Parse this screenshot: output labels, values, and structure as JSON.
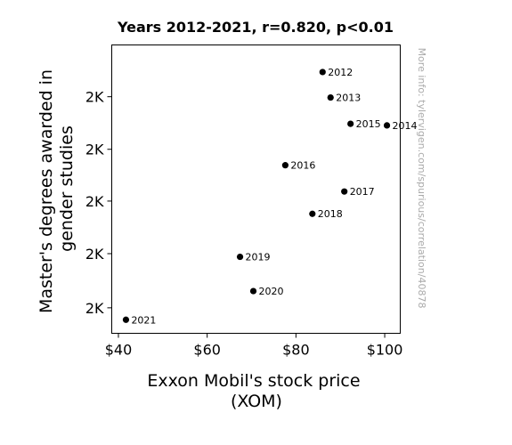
{
  "chart_data": {
    "type": "scatter",
    "title": "Years 2012-2021, r=0.820, p<0.01",
    "xlabel_lines": [
      "Exxon Mobil's stock price",
      "(XOM)"
    ],
    "ylabel_lines": [
      "Master's degrees awarded in",
      "gender studies"
    ],
    "watermark": "More info: tylervigen.com/spurious/correlation/40878",
    "xlim": [
      38.5,
      103.5
    ],
    "ylim": [
      1518,
      1880
    ],
    "x_ticks": [
      {
        "value": 40,
        "label": "$40"
      },
      {
        "value": 60,
        "label": "$60"
      },
      {
        "value": 80,
        "label": "$80"
      },
      {
        "value": 100,
        "label": "$100"
      }
    ],
    "y_ticks": [
      {
        "value": 1550,
        "label": "2K"
      },
      {
        "value": 1618,
        "label": "2K"
      },
      {
        "value": 1684,
        "label": "2K"
      },
      {
        "value": 1749,
        "label": "2K"
      },
      {
        "value": 1815,
        "label": "2K"
      }
    ],
    "points": [
      {
        "label": "2012",
        "x": 86.0,
        "y": 1846
      },
      {
        "label": "2013",
        "x": 87.8,
        "y": 1814
      },
      {
        "label": "2014",
        "x": 100.5,
        "y": 1779
      },
      {
        "label": "2015",
        "x": 92.3,
        "y": 1781
      },
      {
        "label": "2016",
        "x": 77.6,
        "y": 1729
      },
      {
        "label": "2017",
        "x": 90.9,
        "y": 1696
      },
      {
        "label": "2018",
        "x": 83.7,
        "y": 1668
      },
      {
        "label": "2019",
        "x": 67.4,
        "y": 1614
      },
      {
        "label": "2020",
        "x": 70.4,
        "y": 1571
      },
      {
        "label": "2021",
        "x": 41.7,
        "y": 1535
      }
    ],
    "grid": false,
    "marker_color": "#000000"
  }
}
